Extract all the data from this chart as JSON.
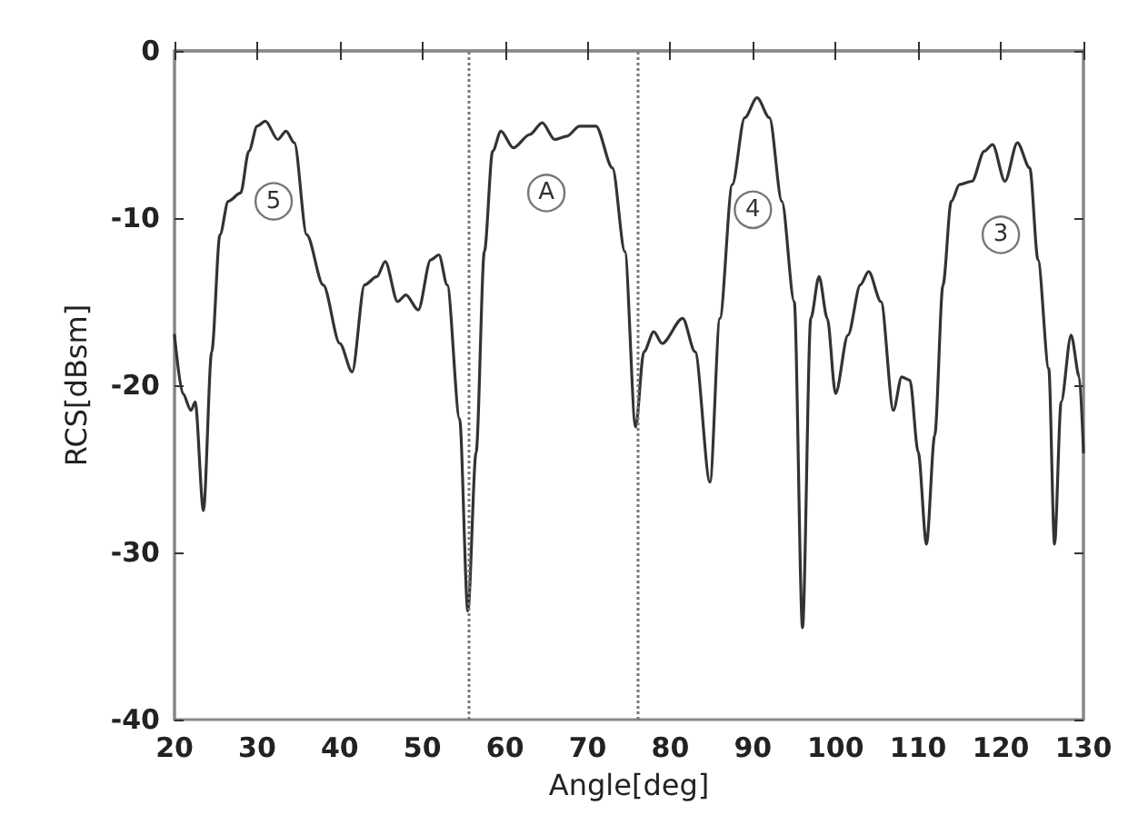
{
  "chart_data": {
    "type": "line",
    "xlabel": "Angle[deg]",
    "ylabel": "RCS[dBsm]",
    "x": [
      20,
      21,
      22,
      22.5,
      23.5,
      24.5,
      25.5,
      26.5,
      28,
      29,
      30,
      31,
      32.5,
      33.5,
      34.5,
      36,
      38,
      40,
      41.5,
      43,
      44.5,
      45.5,
      47,
      48,
      49.5,
      51,
      52,
      53,
      54.5,
      55.5,
      56.5,
      57.5,
      58.5,
      59.5,
      61,
      63,
      64.5,
      66,
      67.5,
      69,
      71,
      73,
      74.5,
      75.8,
      76.8,
      78,
      79,
      81.5,
      83,
      84.8,
      86,
      87.5,
      89,
      90.5,
      92,
      93.5,
      95,
      96,
      97,
      98,
      99,
      100,
      101.5,
      103,
      104,
      105.5,
      107,
      108,
      109,
      110,
      111,
      112,
      113,
      114,
      115,
      116.5,
      118,
      119,
      120.5,
      122,
      123.5,
      124.5,
      125.8,
      126.5,
      127.3,
      128.5,
      129.5,
      130
    ],
    "series": [
      {
        "color": "#333333",
        "values": [
          -17,
          -20.5,
          -21.5,
          -21,
          -27.5,
          -18,
          -11,
          -9,
          -8.5,
          -6,
          -4.5,
          -4.2,
          -5.3,
          -4.8,
          -5.5,
          -11,
          -14,
          -17.5,
          -19.2,
          -14,
          -13.5,
          -12.6,
          -15,
          -14.6,
          -15.5,
          -12.5,
          -12.2,
          -14,
          -22,
          -33.5,
          -24,
          -12,
          -6,
          -4.8,
          -5.8,
          -5,
          -4.3,
          -5.3,
          -5.1,
          -4.5,
          -4.5,
          -7,
          -12,
          -22.5,
          -18,
          -16.8,
          -17.5,
          -16,
          -18,
          -25.8,
          -16,
          -8,
          -4,
          -2.8,
          -4,
          -9,
          -15,
          -34.5,
          -16,
          -13.5,
          -16,
          -20.5,
          -17,
          -14,
          -13.2,
          -15,
          -21.5,
          -19.5,
          -19.7,
          -24,
          -29.5,
          -23,
          -14,
          -9,
          -8,
          -7.8,
          -6,
          -5.6,
          -7.8,
          -5.5,
          -7,
          -12.5,
          -19,
          -29.5,
          -21,
          -17,
          -19.5,
          -24
        ]
      }
    ],
    "xlim": [
      20,
      130
    ],
    "xticks": [
      20,
      30,
      40,
      50,
      60,
      70,
      80,
      90,
      100,
      110,
      120,
      130
    ],
    "ylim": [
      -40,
      0
    ],
    "yticks": [
      -40,
      -30,
      -20,
      -10,
      0
    ],
    "grid": false,
    "marker": "none",
    "line_style": "solid",
    "ref_lines": [
      {
        "axis": "x",
        "value": 55.5,
        "color": "#777777",
        "line_style": "dotted"
      },
      {
        "axis": "x",
        "value": 76,
        "color": "#777777",
        "line_style": "dotted"
      }
    ],
    "annotations": [
      {
        "text": "5",
        "x": 32,
        "y": -9
      },
      {
        "text": "A",
        "x": 65,
        "y": -8.5
      },
      {
        "text": "4",
        "x": 90,
        "y": -9.5
      },
      {
        "text": "3",
        "x": 120,
        "y": -11
      }
    ]
  }
}
